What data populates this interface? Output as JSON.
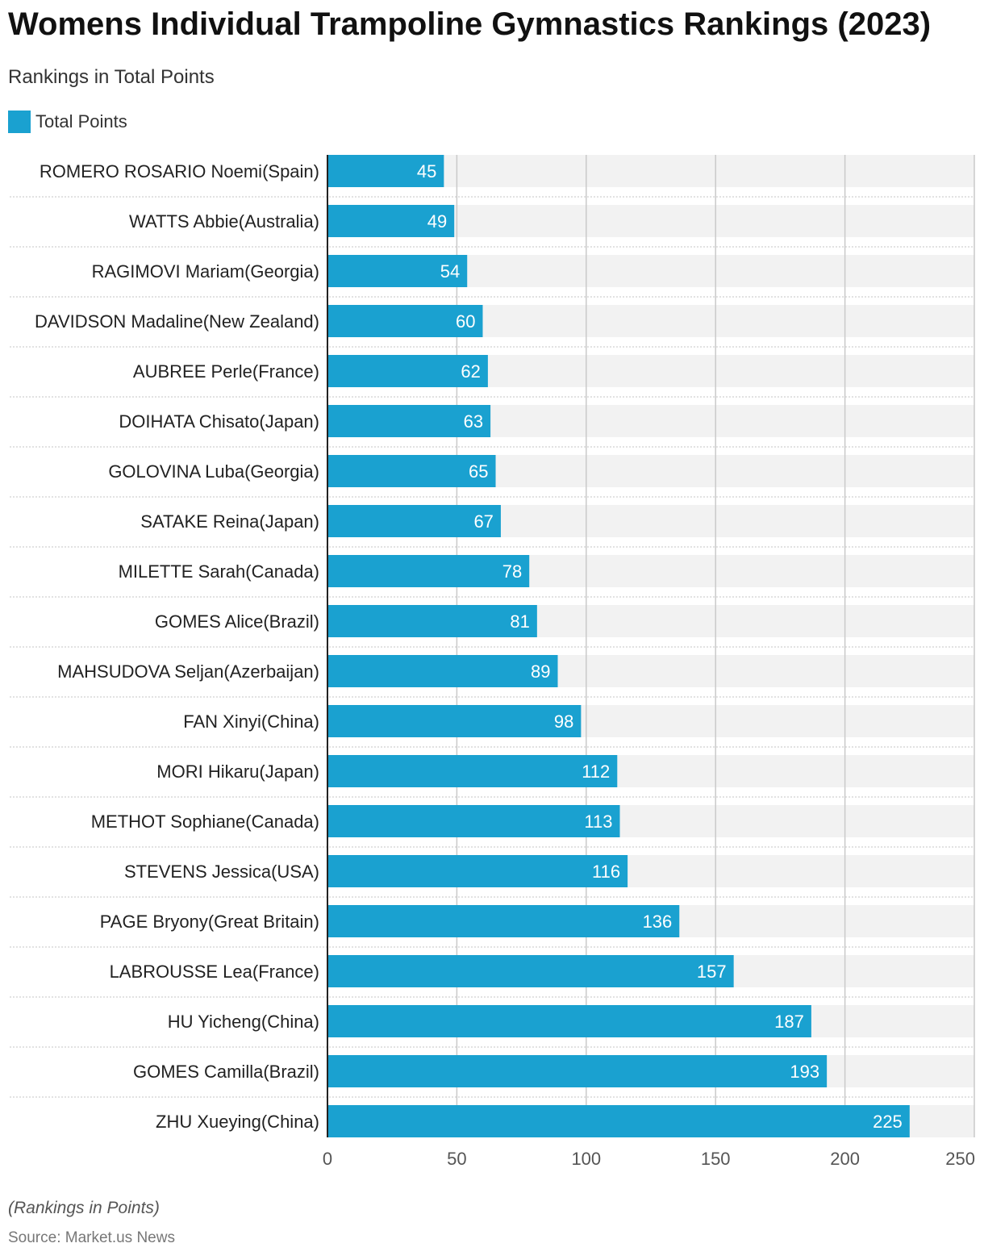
{
  "title": "Womens Individual Trampoline Gymnastics Rankings (2023)",
  "subtitle": "Rankings in Total Points",
  "note": "(Rankings in Points)",
  "source": "Source: Market.us News",
  "colors": {
    "bar": "#1aa1d0",
    "band": "#f2f2f2",
    "grid": "#c9c9c9",
    "axis": "#222222",
    "bar_label": "#ffffff"
  },
  "chart_data": {
    "type": "bar",
    "orientation": "horizontal",
    "categories": [
      "ROMERO ROSARIO Noemi(Spain)",
      "WATTS Abbie(Australia)",
      "RAGIMOVI Mariam(Georgia)",
      "DAVIDSON Madaline(New Zealand)",
      "AUBREE Perle(France)",
      "DOIHATA Chisato(Japan)",
      "GOLOVINA Luba(Georgia)",
      "SATAKE Reina(Japan)",
      "MILETTE Sarah(Canada)",
      "GOMES Alice(Brazil)",
      "MAHSUDOVA Seljan(Azerbaijan)",
      "FAN Xinyi(China)",
      "MORI Hikaru(Japan)",
      "METHOT Sophiane(Canada)",
      "STEVENS Jessica(USA)",
      "PAGE Bryony(Great Britain)",
      "LABROUSSE Lea(France)",
      "HU Yicheng(China)",
      "GOMES Camilla(Brazil)",
      "ZHU Xueying(China)"
    ],
    "series": [
      {
        "name": "Total Points",
        "values": [
          45,
          49,
          54,
          60,
          62,
          63,
          65,
          67,
          78,
          81,
          89,
          98,
          112,
          113,
          116,
          136,
          157,
          187,
          193,
          225
        ]
      }
    ],
    "xlim": [
      0,
      250
    ],
    "xticks": [
      0,
      50,
      100,
      150,
      200,
      250
    ],
    "grid": true,
    "legend_position": "top-left",
    "data_labels": true
  }
}
